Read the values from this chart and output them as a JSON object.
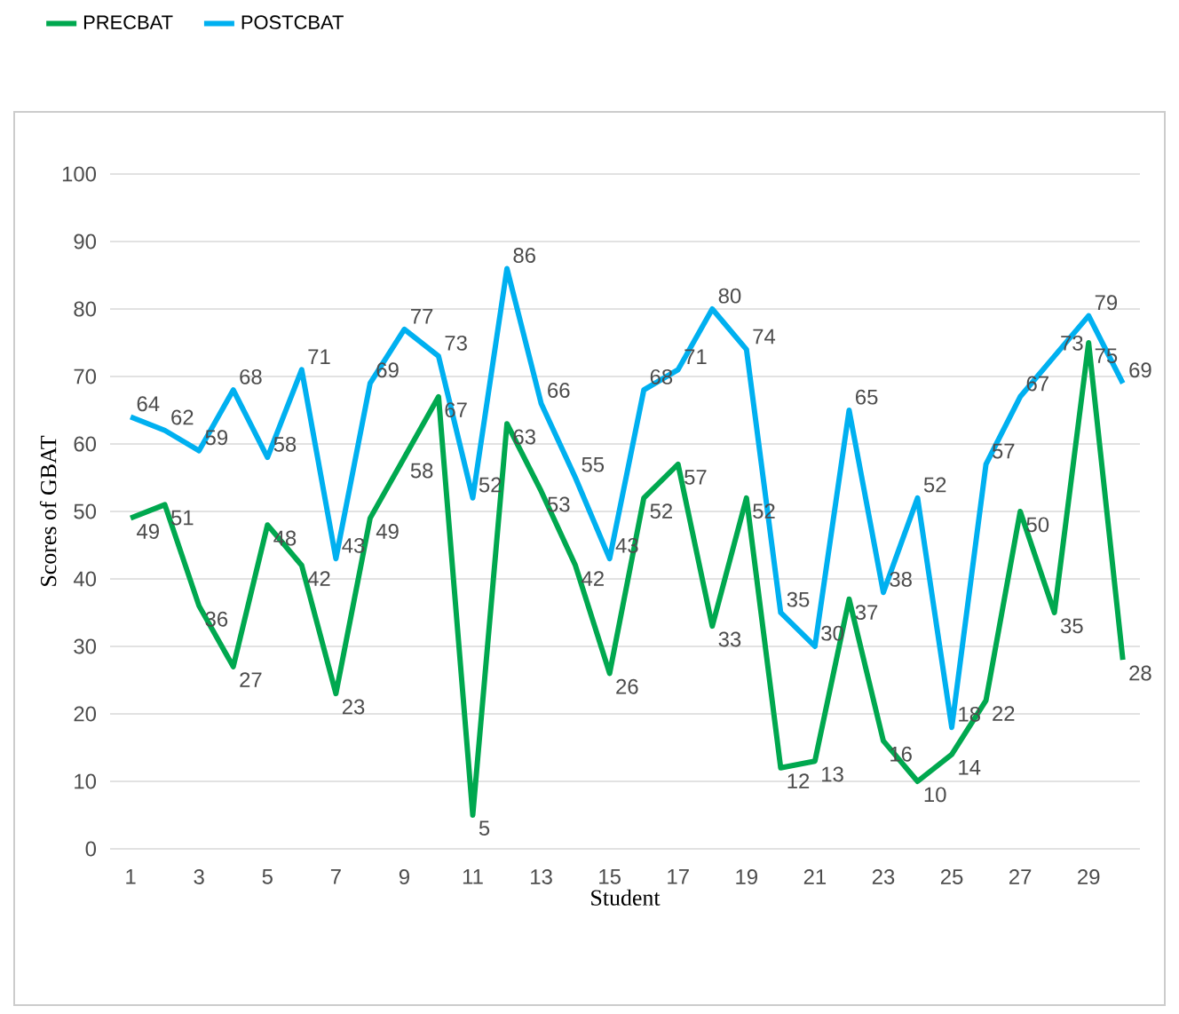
{
  "chart_data": {
    "type": "line",
    "xlabel": "Student",
    "ylabel": "Scores of  GBAT",
    "categories": [
      "1",
      null,
      "3",
      null,
      "5",
      null,
      "7",
      null,
      "9",
      null,
      "11",
      null,
      "13",
      null,
      "15",
      null,
      "17",
      null,
      "19",
      null,
      "21",
      null,
      "23",
      null,
      "25",
      null,
      "27",
      null,
      "29",
      null
    ],
    "series": [
      {
        "name": "PRECBAT",
        "color": "#00a84f",
        "values": [
          49,
          51,
          36,
          27,
          48,
          42,
          23,
          49,
          58,
          67,
          5,
          63,
          53,
          42,
          26,
          52,
          57,
          33,
          52,
          12,
          13,
          37,
          16,
          10,
          14,
          22,
          50,
          35,
          75,
          28
        ]
      },
      {
        "name": "POSTCBAT",
        "color": "#00b0f0",
        "values": [
          64,
          62,
          59,
          68,
          58,
          71,
          43,
          69,
          77,
          73,
          52,
          86,
          66,
          55,
          43,
          68,
          71,
          80,
          74,
          35,
          30,
          65,
          38,
          52,
          18,
          57,
          67,
          73,
          79,
          69
        ]
      }
    ],
    "ylim": [
      0,
      100
    ],
    "yticks": [
      0,
      10,
      20,
      30,
      40,
      50,
      60,
      70,
      80,
      90,
      100
    ],
    "grid": "y",
    "legend": "top left",
    "data_labels": true,
    "marker": "none",
    "line_style": "solid"
  }
}
